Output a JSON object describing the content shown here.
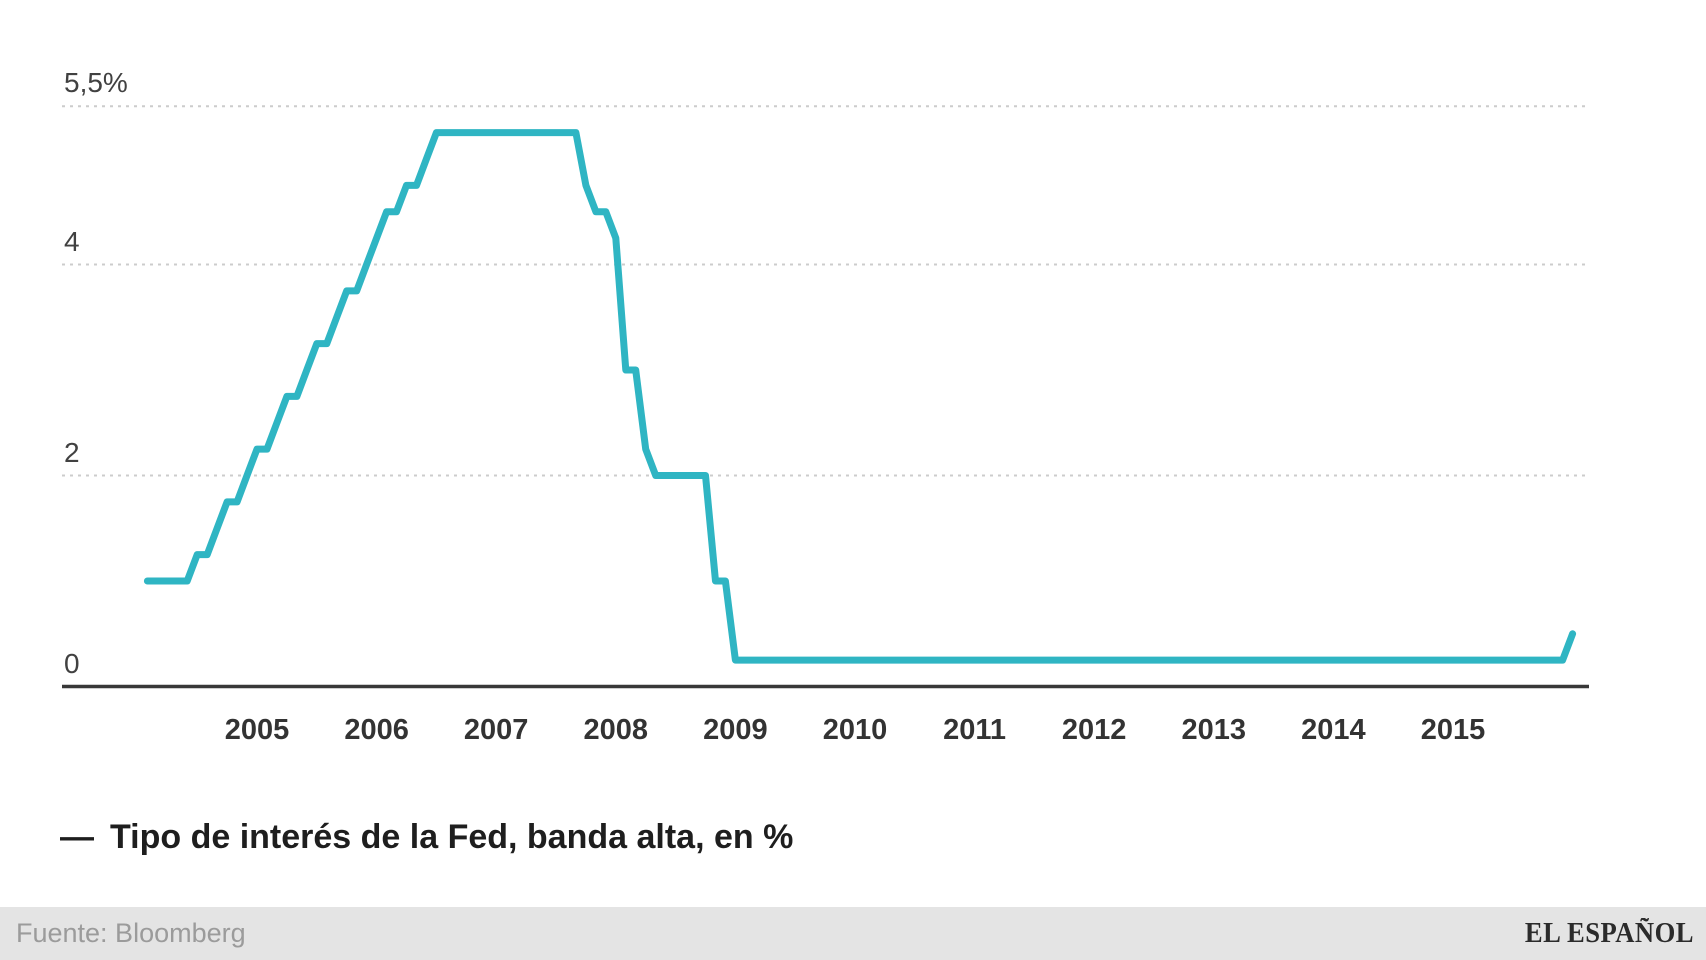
{
  "chart_data": {
    "type": "line",
    "series_name": "Tipo de interés de la Fed, banda alta, en %",
    "line_color": "#2fb5c3",
    "sampling": "monthly, linear interpolation, Jan 2004 - Dec 2015",
    "x_range": [
      "2004-01",
      "2015-12"
    ],
    "ylim": [
      0,
      5.5
    ],
    "y_gridlines": [
      5.5,
      4,
      2
    ],
    "grid": "dotted horizontal gridlines, solid baseline at 0",
    "legend_position": "bottom-left",
    "y_ticks": [
      5.5,
      4,
      2,
      0
    ],
    "y_tick_labels": [
      "5,5%",
      "4",
      "2",
      "0"
    ],
    "x_tick_labels": [
      "2005",
      "2006",
      "2007",
      "2008",
      "2009",
      "2010",
      "2011",
      "2012",
      "2013",
      "2014",
      "2015"
    ],
    "rate_changes": [
      {
        "month": "2004-01",
        "value": 1.0
      },
      {
        "month": "2004-06",
        "value": 1.25
      },
      {
        "month": "2004-08",
        "value": 1.5
      },
      {
        "month": "2004-09",
        "value": 1.75
      },
      {
        "month": "2004-11",
        "value": 2.0
      },
      {
        "month": "2004-12",
        "value": 2.25
      },
      {
        "month": "2005-02",
        "value": 2.5
      },
      {
        "month": "2005-03",
        "value": 2.75
      },
      {
        "month": "2005-05",
        "value": 3.0
      },
      {
        "month": "2005-06",
        "value": 3.25
      },
      {
        "month": "2005-08",
        "value": 3.5
      },
      {
        "month": "2005-09",
        "value": 3.75
      },
      {
        "month": "2005-11",
        "value": 4.0
      },
      {
        "month": "2005-12",
        "value": 4.25
      },
      {
        "month": "2006-01",
        "value": 4.5
      },
      {
        "month": "2006-03",
        "value": 4.75
      },
      {
        "month": "2006-05",
        "value": 5.0
      },
      {
        "month": "2006-06",
        "value": 5.25
      },
      {
        "month": "2007-09",
        "value": 4.75
      },
      {
        "month": "2007-10",
        "value": 4.5
      },
      {
        "month": "2007-12",
        "value": 4.25
      },
      {
        "month": "2008-01",
        "value": 3.0
      },
      {
        "month": "2008-03",
        "value": 2.25
      },
      {
        "month": "2008-04",
        "value": 2.0
      },
      {
        "month": "2008-10",
        "value": 1.0
      },
      {
        "month": "2008-12",
        "value": 0.25
      },
      {
        "month": "2015-12",
        "value": 0.5
      }
    ]
  },
  "legend": {
    "marker": "—",
    "label": "Tipo de interés de la Fed, banda alta, en %"
  },
  "footer": {
    "source": "Fuente: Bloomberg",
    "brand": "EL ESPAÑOL"
  }
}
